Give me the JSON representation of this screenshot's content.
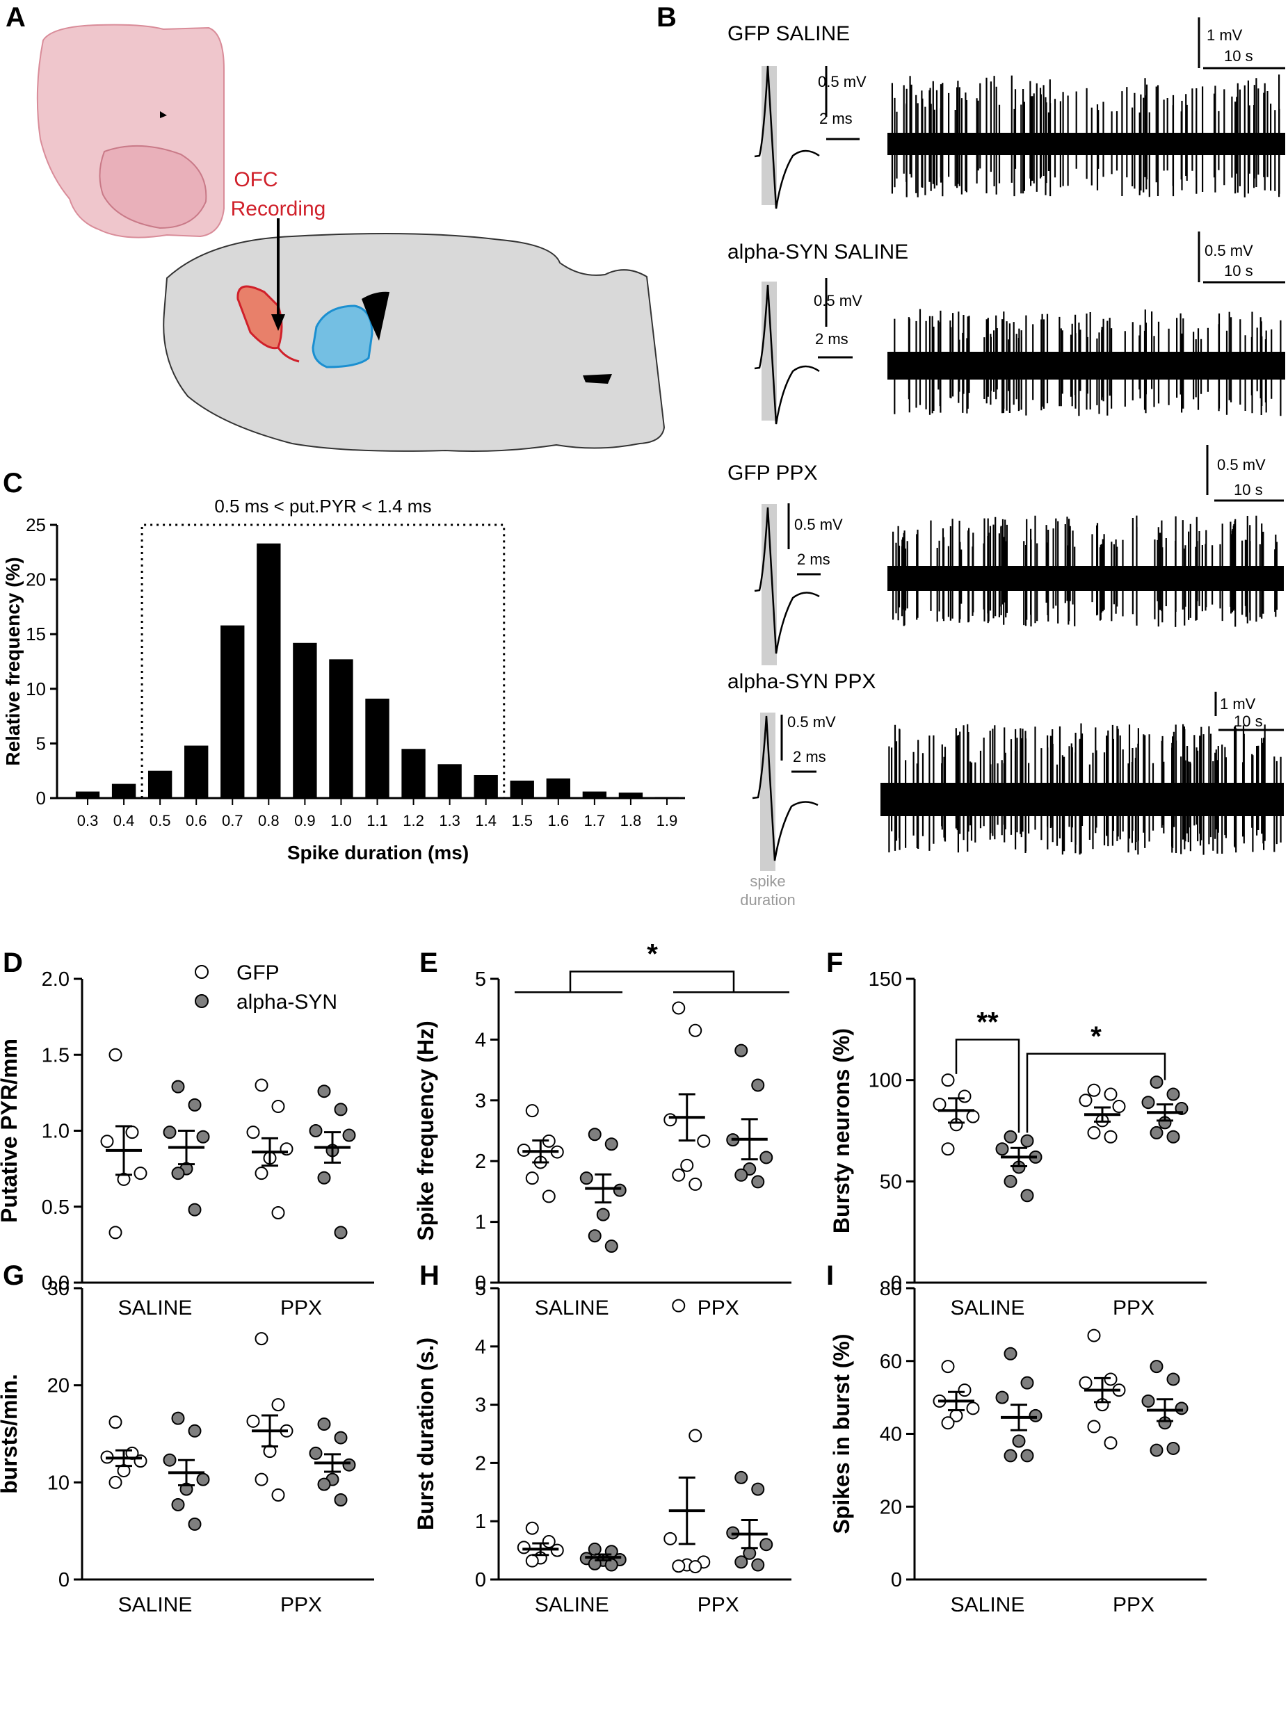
{
  "figure": {
    "panel_labels": {
      "A": "A",
      "B": "B",
      "C": "C",
      "D": "D",
      "E": "E",
      "F": "F",
      "G": "G",
      "H": "H",
      "I": "I"
    },
    "panelA": {
      "region_label_1": "OFC",
      "region_label_2": "Recording"
    },
    "panelB": {
      "groups": [
        {
          "title": "GFP SALINE",
          "amp_label": "0.5 mV",
          "time_label": "2 ms",
          "trace_amp": "1 mV",
          "trace_time": "10 s"
        },
        {
          "title": "alpha-SYN SALINE",
          "amp_label": "0.5 mV",
          "time_label": "2 ms",
          "trace_amp": "0.5 mV",
          "trace_time": "10 s"
        },
        {
          "title": "GFP PPX",
          "amp_label": "0.5 mV",
          "time_label": "2 ms",
          "trace_amp": "0.5 mV",
          "trace_time": "10 s"
        },
        {
          "title": "alpha-SYN PPX",
          "amp_label": "0.5 mV",
          "time_label": "2 ms",
          "trace_amp": "1 mV",
          "trace_time": "10 s"
        }
      ],
      "spike_label_1": "spike",
      "spike_label_2": "duration"
    },
    "colors": {
      "ofc": "#e8806a",
      "ofc_outline": "#d0202a",
      "striatum": "#74bfe3",
      "striatum_outline": "#1b8fd0",
      "brain": "#d9d9d9",
      "spike_band": "#cfcfcf",
      "alpha_syn_fill": "#7f7f7f",
      "gfp_fill": "#ffffff",
      "annotation_red": "#d0202a"
    }
  },
  "chart_data": [
    {
      "panel": "C",
      "type": "bar",
      "title": "",
      "annotation": "0.5 ms < put.PYR < 1.4 ms",
      "xlabel": "Spike duration (ms)",
      "ylabel": "Relative frequency (%)",
      "ylim": [
        0,
        25
      ],
      "yticks": [
        "0",
        "5",
        "10",
        "15",
        "20",
        "25"
      ],
      "categories": [
        "0.3",
        "0.4",
        "0.5",
        "0.6",
        "0.7",
        "0.8",
        "0.9",
        "1.0",
        "1.1",
        "1.2",
        "1.3",
        "1.4",
        "1.5",
        "1.6",
        "1.7",
        "1.8",
        "1.9"
      ],
      "values": [
        0.6,
        1.3,
        2.5,
        4.8,
        15.8,
        23.3,
        14.2,
        12.7,
        9.1,
        4.5,
        3.1,
        2.1,
        1.6,
        1.8,
        0.6,
        0.5,
        0.1
      ]
    },
    {
      "panel": "D",
      "type": "scatter",
      "ylabel": "Putative PYR/mm",
      "ylim": [
        0,
        2.0
      ],
      "yticks": [
        "0.0",
        "0.5",
        "1.0",
        "1.5",
        "2.0"
      ],
      "groups": [
        "SALINE",
        "PPX"
      ],
      "legend": [
        {
          "name": "GFP"
        },
        {
          "name": "alpha-SYN"
        }
      ],
      "significance": [],
      "series": [
        {
          "name": "GFP",
          "group": "SALINE",
          "mean": 0.87,
          "sem": 0.16,
          "points": [
            1.5,
            0.99,
            0.93,
            0.72,
            0.68,
            0.33
          ]
        },
        {
          "name": "alpha-SYN",
          "group": "SALINE",
          "mean": 0.89,
          "sem": 0.11,
          "points": [
            1.29,
            1.17,
            0.99,
            0.96,
            0.75,
            0.72,
            0.48
          ]
        },
        {
          "name": "GFP",
          "group": "PPX",
          "mean": 0.86,
          "sem": 0.09,
          "points": [
            1.3,
            1.16,
            0.99,
            0.88,
            0.82,
            0.72,
            0.46
          ]
        },
        {
          "name": "alpha-SYN",
          "group": "PPX",
          "mean": 0.89,
          "sem": 0.1,
          "points": [
            1.26,
            1.14,
            1.0,
            0.97,
            0.87,
            0.69,
            0.33
          ]
        }
      ]
    },
    {
      "panel": "E",
      "type": "scatter",
      "ylabel": "Spike frequency (Hz)",
      "ylim": [
        0,
        5
      ],
      "yticks": [
        "0",
        "1",
        "2",
        "3",
        "4",
        "5"
      ],
      "groups": [
        "SALINE",
        "PPX"
      ],
      "significance": [
        {
          "label": "*"
        }
      ],
      "series": [
        {
          "name": "GFP",
          "group": "SALINE",
          "mean": 2.16,
          "sem": 0.18,
          "points": [
            2.83,
            2.33,
            2.18,
            2.15,
            1.98,
            1.72,
            1.42
          ]
        },
        {
          "name": "alpha-SYN",
          "group": "SALINE",
          "mean": 1.55,
          "sem": 0.23,
          "points": [
            2.44,
            2.28,
            1.72,
            1.52,
            1.12,
            0.77,
            0.6
          ]
        },
        {
          "name": "GFP",
          "group": "PPX",
          "mean": 2.72,
          "sem": 0.38,
          "points": [
            4.52,
            4.15,
            2.68,
            2.33,
            1.93,
            1.77,
            1.62
          ]
        },
        {
          "name": "alpha-SYN",
          "group": "PPX",
          "mean": 2.36,
          "sem": 0.33,
          "points": [
            3.82,
            3.25,
            2.35,
            2.06,
            1.87,
            1.77,
            1.66
          ]
        }
      ]
    },
    {
      "panel": "F",
      "type": "scatter",
      "ylabel": "Bursty neurons (%)",
      "ylim": [
        0,
        150
      ],
      "yticks": [
        "0",
        "50",
        "100",
        "150"
      ],
      "groups": [
        "SALINE",
        "PPX"
      ],
      "significance": [
        {
          "label": "**"
        },
        {
          "label": "*"
        }
      ],
      "series": [
        {
          "name": "GFP",
          "group": "SALINE",
          "mean": 85,
          "sem": 6,
          "points": [
            100,
            92,
            88,
            82,
            78,
            66
          ]
        },
        {
          "name": "alpha-SYN",
          "group": "SALINE",
          "mean": 62,
          "sem": 4.5,
          "points": [
            72,
            70,
            66,
            62,
            57,
            50,
            43
          ]
        },
        {
          "name": "GFP",
          "group": "PPX",
          "mean": 83,
          "sem": 3.5,
          "points": [
            95,
            93,
            90,
            87,
            80,
            74,
            72
          ]
        },
        {
          "name": "alpha-SYN",
          "group": "PPX",
          "mean": 84,
          "sem": 4,
          "points": [
            99,
            93,
            89,
            86,
            79,
            74,
            72
          ]
        }
      ]
    },
    {
      "panel": "G",
      "type": "scatter",
      "ylabel": "bursts/min.",
      "ylim": [
        0,
        30
      ],
      "yticks": [
        "0",
        "10",
        "20",
        "30"
      ],
      "groups": [
        "SALINE",
        "PPX"
      ],
      "significance": [],
      "series": [
        {
          "name": "GFP",
          "group": "SALINE",
          "mean": 12.5,
          "sem": 0.8,
          "points": [
            16.2,
            13.0,
            12.6,
            12.2,
            11.2,
            10.0
          ]
        },
        {
          "name": "alpha-SYN",
          "group": "SALINE",
          "mean": 11.0,
          "sem": 1.3,
          "points": [
            16.6,
            15.3,
            12.3,
            10.3,
            9.3,
            7.7,
            5.7
          ]
        },
        {
          "name": "GFP",
          "group": "PPX",
          "mean": 15.3,
          "sem": 1.6,
          "points": [
            24.8,
            18.0,
            16.3,
            15.3,
            13.2,
            10.3,
            8.7
          ]
        },
        {
          "name": "alpha-SYN",
          "group": "PPX",
          "mean": 12.0,
          "sem": 0.9,
          "points": [
            16.0,
            14.6,
            13.0,
            11.8,
            10.3,
            9.8,
            8.2
          ]
        }
      ]
    },
    {
      "panel": "H",
      "type": "scatter",
      "ylabel": "Burst duration (s.)",
      "ylim": [
        0,
        5
      ],
      "yticks": [
        "0",
        "1",
        "2",
        "3",
        "4",
        "5"
      ],
      "groups": [
        "SALINE",
        "PPX"
      ],
      "significance": [],
      "series": [
        {
          "name": "GFP",
          "group": "SALINE",
          "mean": 0.52,
          "sem": 0.1,
          "points": [
            0.88,
            0.65,
            0.55,
            0.5,
            0.37,
            0.32
          ]
        },
        {
          "name": "alpha-SYN",
          "group": "SALINE",
          "mean": 0.38,
          "sem": 0.05,
          "points": [
            0.52,
            0.48,
            0.36,
            0.34,
            0.33,
            0.27,
            0.25
          ]
        },
        {
          "name": "GFP",
          "group": "PPX",
          "mean": 1.18,
          "sem": 0.57,
          "points": [
            4.7,
            2.47,
            0.7,
            0.3,
            0.25,
            0.23,
            0.22
          ]
        },
        {
          "name": "alpha-SYN",
          "group": "PPX",
          "mean": 0.78,
          "sem": 0.24,
          "points": [
            1.75,
            1.55,
            0.8,
            0.6,
            0.45,
            0.3,
            0.25
          ]
        }
      ]
    },
    {
      "panel": "I",
      "type": "scatter",
      "ylabel": "Spikes in burst (%)",
      "ylim": [
        0,
        80
      ],
      "yticks": [
        "0",
        "20",
        "40",
        "60",
        "80"
      ],
      "groups": [
        "SALINE",
        "PPX"
      ],
      "significance": [],
      "series": [
        {
          "name": "GFP",
          "group": "SALINE",
          "mean": 49,
          "sem": 2.5,
          "points": [
            58.5,
            52,
            49,
            47,
            45,
            43
          ]
        },
        {
          "name": "alpha-SYN",
          "group": "SALINE",
          "mean": 44.5,
          "sem": 3.5,
          "points": [
            62,
            54,
            50,
            45,
            38,
            34,
            34
          ]
        },
        {
          "name": "GFP",
          "group": "PPX",
          "mean": 52,
          "sem": 3.3,
          "points": [
            67,
            55,
            54,
            52,
            48,
            42,
            37.5
          ]
        },
        {
          "name": "alpha-SYN",
          "group": "PPX",
          "mean": 46.5,
          "sem": 3.0,
          "points": [
            58.5,
            55,
            49,
            47,
            43,
            35.5,
            36
          ]
        }
      ]
    }
  ]
}
